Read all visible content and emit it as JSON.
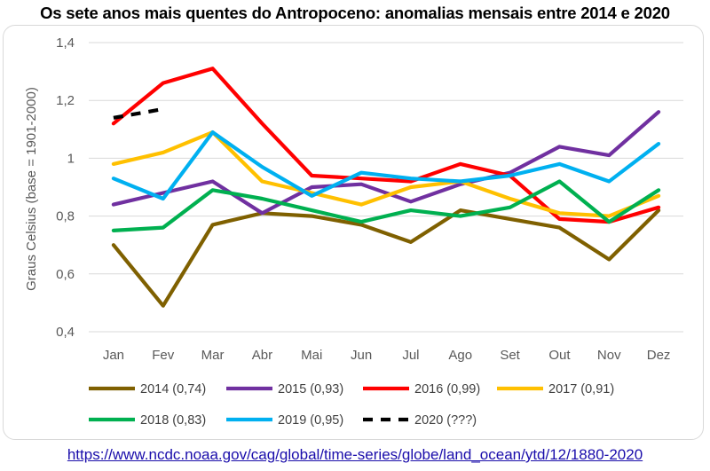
{
  "title": "Os sete anos mais quentes do Antropoceno: anomalias mensais entre 2014 e 2020",
  "source_url": "https://www.ncdc.noaa.gov/cag/global/time-series/globe/land_ocean/ytd/12/1880-2020",
  "chart_data": {
    "type": "line",
    "title": "Os sete anos mais quentes do Antropoceno: anomalias mensais entre 2014 e 2020",
    "xlabel": "",
    "ylabel": "Graus Celsius (base = 1901-2000)",
    "categories": [
      "Jan",
      "Fev",
      "Mar",
      "Abr",
      "Mai",
      "Jun",
      "Jul",
      "Ago",
      "Set",
      "Out",
      "Nov",
      "Dez"
    ],
    "ylim": [
      0.4,
      1.4
    ],
    "yticks": [
      0.4,
      0.6,
      0.8,
      1.0,
      1.2,
      1.4
    ],
    "ytick_labels": [
      "0,4",
      "0,6",
      "0,8",
      "1",
      "1,2",
      "1,4"
    ],
    "grid": true,
    "legend_position": "bottom",
    "series": [
      {
        "name": "2014 (0,74)",
        "color": "#7f6000",
        "values": [
          0.7,
          0.49,
          0.77,
          0.81,
          0.8,
          0.77,
          0.71,
          0.82,
          0.79,
          0.76,
          0.65,
          0.82
        ]
      },
      {
        "name": "2015 (0,93)",
        "color": "#7030a0",
        "values": [
          0.84,
          0.88,
          0.92,
          0.81,
          0.9,
          0.91,
          0.85,
          0.91,
          0.95,
          1.04,
          1.01,
          1.16
        ]
      },
      {
        "name": "2016 (0,99)",
        "color": "#ff0000",
        "values": [
          1.12,
          1.26,
          1.31,
          1.12,
          0.94,
          0.93,
          0.92,
          0.98,
          0.94,
          0.79,
          0.78,
          0.83
        ]
      },
      {
        "name": "2017 (0,91)",
        "color": "#ffc000",
        "values": [
          0.98,
          1.02,
          1.09,
          0.92,
          0.88,
          0.84,
          0.9,
          0.92,
          0.86,
          0.81,
          0.8,
          0.87
        ]
      },
      {
        "name": "2018 (0,83)",
        "color": "#00b050",
        "values": [
          0.75,
          0.76,
          0.89,
          0.86,
          0.82,
          0.78,
          0.82,
          0.8,
          0.83,
          0.92,
          0.78,
          0.89
        ]
      },
      {
        "name": "2019 (0,95)",
        "color": "#00b0f0",
        "values": [
          0.93,
          0.86,
          1.09,
          0.97,
          0.87,
          0.95,
          0.93,
          0.92,
          0.94,
          0.98,
          0.92,
          1.05
        ]
      },
      {
        "name": "2020 (???)",
        "color": "#000000",
        "dashed": true,
        "values": [
          1.14,
          1.17,
          null,
          null,
          null,
          null,
          null,
          null,
          null,
          null,
          null,
          null
        ]
      }
    ]
  }
}
